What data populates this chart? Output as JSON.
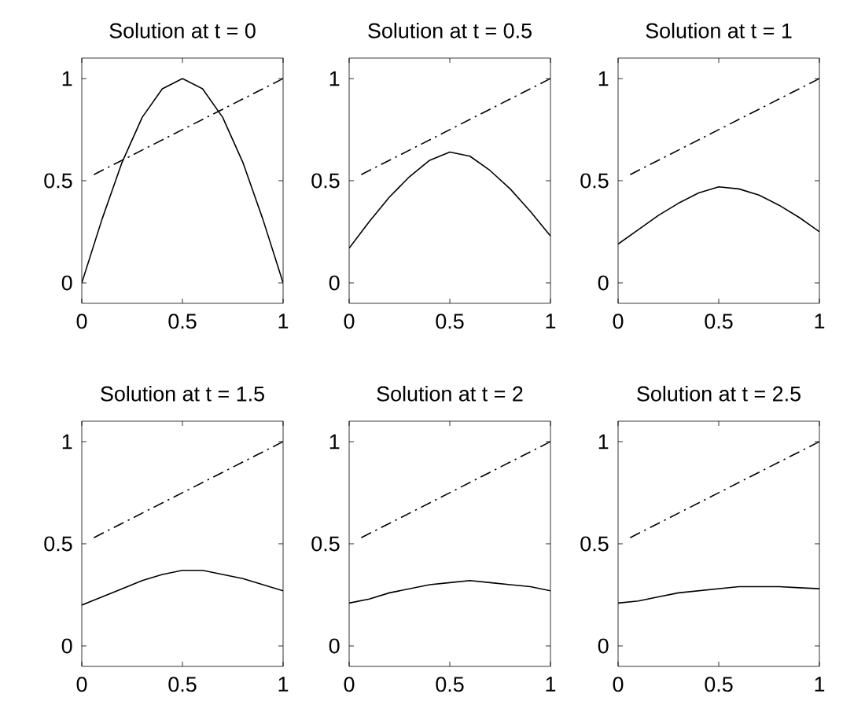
{
  "chart_data": [
    {
      "type": "line",
      "title": "Solution at t = 0",
      "xlim": [
        0,
        1
      ],
      "ylim": [
        -0.1,
        1.1
      ],
      "xticks": [
        0,
        0.5,
        1
      ],
      "yticks": [
        0,
        0.5,
        1
      ],
      "series": [
        {
          "color": "#000000",
          "line_style": "solid",
          "x": [
            0,
            0.1,
            0.2,
            0.3,
            0.4,
            0.5,
            0.6,
            0.7,
            0.8,
            0.9,
            1
          ],
          "values": [
            0,
            0.31,
            0.59,
            0.81,
            0.95,
            1,
            0.95,
            0.81,
            0.59,
            0.31,
            0
          ]
        },
        {
          "color": "#000000",
          "line_style": "dashdot",
          "x": [
            0.06,
            1
          ],
          "values": [
            0.53,
            1
          ]
        }
      ]
    },
    {
      "type": "line",
      "title": "Solution at t = 0.5",
      "xlim": [
        0,
        1
      ],
      "ylim": [
        -0.1,
        1.1
      ],
      "xticks": [
        0,
        0.5,
        1
      ],
      "yticks": [
        0,
        0.5,
        1
      ],
      "series": [
        {
          "color": "#000000",
          "line_style": "solid",
          "x": [
            0,
            0.1,
            0.2,
            0.3,
            0.4,
            0.5,
            0.6,
            0.7,
            0.8,
            0.9,
            1
          ],
          "values": [
            0.17,
            0.3,
            0.42,
            0.52,
            0.6,
            0.64,
            0.62,
            0.55,
            0.46,
            0.35,
            0.23
          ]
        },
        {
          "color": "#000000",
          "line_style": "dashdot",
          "x": [
            0.06,
            1
          ],
          "values": [
            0.53,
            1
          ]
        }
      ]
    },
    {
      "type": "line",
      "title": "Solution at t = 1",
      "xlim": [
        0,
        1
      ],
      "ylim": [
        -0.1,
        1.1
      ],
      "xticks": [
        0,
        0.5,
        1
      ],
      "yticks": [
        0,
        0.5,
        1
      ],
      "series": [
        {
          "color": "#000000",
          "line_style": "solid",
          "x": [
            0,
            0.1,
            0.2,
            0.3,
            0.4,
            0.5,
            0.6,
            0.7,
            0.8,
            0.9,
            1
          ],
          "values": [
            0.19,
            0.26,
            0.33,
            0.39,
            0.44,
            0.47,
            0.46,
            0.43,
            0.38,
            0.32,
            0.25
          ]
        },
        {
          "color": "#000000",
          "line_style": "dashdot",
          "x": [
            0.06,
            1
          ],
          "values": [
            0.53,
            1
          ]
        }
      ]
    },
    {
      "type": "line",
      "title": "Solution at t = 1.5",
      "xlim": [
        0,
        1
      ],
      "ylim": [
        -0.1,
        1.1
      ],
      "xticks": [
        0,
        0.5,
        1
      ],
      "yticks": [
        0,
        0.5,
        1
      ],
      "series": [
        {
          "color": "#000000",
          "line_style": "solid",
          "x": [
            0,
            0.1,
            0.2,
            0.3,
            0.4,
            0.5,
            0.6,
            0.7,
            0.8,
            0.9,
            1
          ],
          "values": [
            0.2,
            0.24,
            0.28,
            0.32,
            0.35,
            0.37,
            0.37,
            0.35,
            0.33,
            0.3,
            0.27
          ]
        },
        {
          "color": "#000000",
          "line_style": "dashdot",
          "x": [
            0.06,
            1
          ],
          "values": [
            0.53,
            1
          ]
        }
      ]
    },
    {
      "type": "line",
      "title": "Solution at t = 2",
      "xlim": [
        0,
        1
      ],
      "ylim": [
        -0.1,
        1.1
      ],
      "xticks": [
        0,
        0.5,
        1
      ],
      "yticks": [
        0,
        0.5,
        1
      ],
      "series": [
        {
          "color": "#000000",
          "line_style": "solid",
          "x": [
            0,
            0.1,
            0.2,
            0.3,
            0.4,
            0.5,
            0.6,
            0.7,
            0.8,
            0.9,
            1
          ],
          "values": [
            0.21,
            0.23,
            0.26,
            0.28,
            0.3,
            0.31,
            0.32,
            0.31,
            0.3,
            0.29,
            0.27
          ]
        },
        {
          "color": "#000000",
          "line_style": "dashdot",
          "x": [
            0.06,
            1
          ],
          "values": [
            0.53,
            1
          ]
        }
      ]
    },
    {
      "type": "line",
      "title": "Solution at t = 2.5",
      "xlim": [
        0,
        1
      ],
      "ylim": [
        -0.1,
        1.1
      ],
      "xticks": [
        0,
        0.5,
        1
      ],
      "yticks": [
        0,
        0.5,
        1
      ],
      "series": [
        {
          "color": "#000000",
          "line_style": "solid",
          "x": [
            0,
            0.1,
            0.2,
            0.3,
            0.4,
            0.5,
            0.6,
            0.7,
            0.8,
            0.9,
            1
          ],
          "values": [
            0.21,
            0.22,
            0.24,
            0.26,
            0.27,
            0.28,
            0.29,
            0.29,
            0.29,
            0.285,
            0.28
          ]
        },
        {
          "color": "#000000",
          "line_style": "dashdot",
          "x": [
            0.06,
            1
          ],
          "values": [
            0.53,
            1
          ]
        }
      ]
    }
  ]
}
